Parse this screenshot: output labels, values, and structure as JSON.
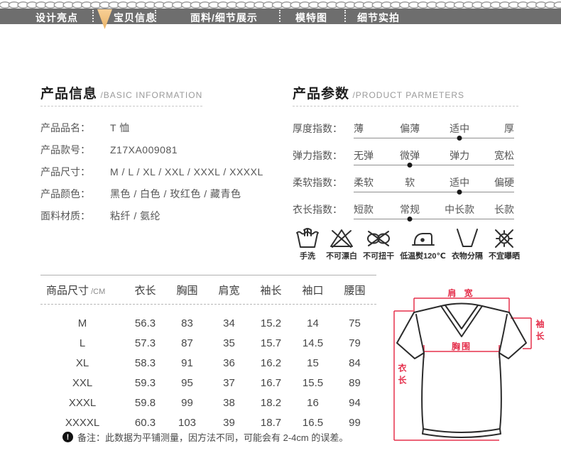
{
  "nav": {
    "tabs": [
      {
        "label": "设计亮点",
        "active": false
      },
      {
        "label": "宝贝信息",
        "active": true
      },
      {
        "label": "面料/细节展示",
        "active": false
      },
      {
        "label": "模特图",
        "active": false
      },
      {
        "label": "细节实拍",
        "active": false
      }
    ]
  },
  "basic_info": {
    "title_zh": "产品信息",
    "title_en": "/BASIC INFORMATION",
    "rows": [
      {
        "label": "产品品名：",
        "value": "T 恤"
      },
      {
        "label": "产品款号：",
        "value": "Z17XA009081"
      },
      {
        "label": "产品尺寸：",
        "value": "M / L / XL / XXL / XXXL / XXXXL"
      },
      {
        "label": "产品颜色：",
        "value": "黑色 / 白色 / 玫红色 / 藏青色"
      },
      {
        "label": "面料材质：",
        "value": "粘纤 / 氨纶"
      }
    ]
  },
  "parameters": {
    "title_zh": "产品参数",
    "title_en": "/PRODUCT PARMETERS",
    "rows": [
      {
        "label": "厚度指数：",
        "options": [
          "薄",
          "偏薄",
          "适中",
          "厚"
        ],
        "selected_index": 2
      },
      {
        "label": "弹力指数：",
        "options": [
          "无弹",
          "微弹",
          "弹力",
          "宽松"
        ],
        "selected_index": 1
      },
      {
        "label": "柔软指数：",
        "options": [
          "柔软",
          "软",
          "适中",
          "偏硬"
        ],
        "selected_index": 2
      },
      {
        "label": "衣长指数：",
        "options": [
          "短款",
          "常规",
          "中长款",
          "长款"
        ],
        "selected_index": 1
      }
    ],
    "care_icons": [
      {
        "icon": "hand-wash-icon",
        "label": "手洗"
      },
      {
        "icon": "no-bleach-icon",
        "label": "不可漂白"
      },
      {
        "icon": "no-wring-icon",
        "label": "不可扭干"
      },
      {
        "icon": "low-iron-icon",
        "label": "低温熨120℃"
      },
      {
        "icon": "separate-wash-icon",
        "label": "衣物分隔"
      },
      {
        "icon": "no-sun-icon",
        "label": "不宜曝晒"
      }
    ]
  },
  "size_chart": {
    "type": "table",
    "title_zh": "商品尺寸",
    "title_unit": "/CM",
    "columns": [
      "衣长",
      "胸围",
      "肩宽",
      "袖长",
      "袖口",
      "腰围"
    ],
    "rows": [
      {
        "size": "M",
        "values": [
          "56.3",
          "83",
          "34",
          "15.2",
          "14",
          "75"
        ]
      },
      {
        "size": "L",
        "values": [
          "57.3",
          "87",
          "35",
          "15.7",
          "14.5",
          "79"
        ]
      },
      {
        "size": "XL",
        "values": [
          "58.3",
          "91",
          "36",
          "16.2",
          "15",
          "84"
        ]
      },
      {
        "size": "XXL",
        "values": [
          "59.3",
          "95",
          "37",
          "16.7",
          "15.5",
          "89"
        ]
      },
      {
        "size": "XXXL",
        "values": [
          "59.8",
          "99",
          "38",
          "18.2",
          "16",
          "94"
        ]
      },
      {
        "size": "XXXXL",
        "values": [
          "60.3",
          "103",
          "39",
          "18.7",
          "16.5",
          "99"
        ]
      }
    ]
  },
  "note": {
    "icon_glyph": "!",
    "text": "备注：此数据为平铺测量，因方法不同，可能会有 2-4cm 的误差。"
  },
  "diagram": {
    "labels": {
      "shoulder": "肩 宽",
      "sleeve": "袖长",
      "chest": "胸围",
      "length": "衣长"
    }
  },
  "colors": {
    "accent_red": "#e5304c",
    "nav_gray": "#6e6e6e",
    "pointer_orange": "#eeb96f",
    "dot_black": "#191919"
  }
}
